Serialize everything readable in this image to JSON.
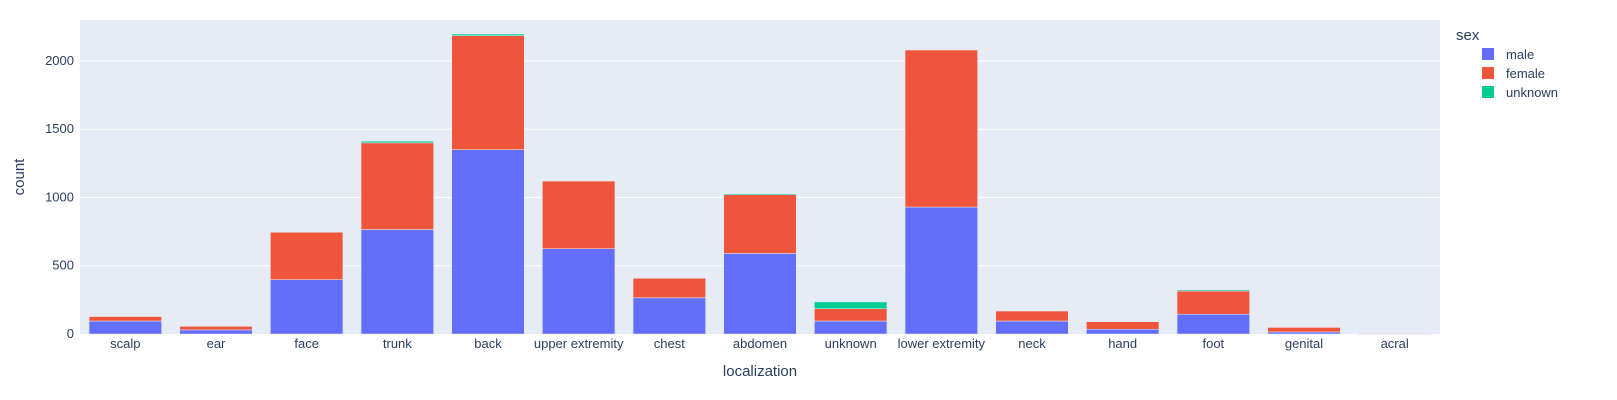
{
  "chart_data": {
    "type": "bar",
    "barmode": "stack",
    "xlabel": "localization",
    "ylabel": "count",
    "ylim": [
      0,
      2300
    ],
    "yticks": [
      0,
      500,
      1000,
      1500,
      2000
    ],
    "grid": true,
    "legend": {
      "title": "sex",
      "position": "top-right"
    },
    "categories": [
      "scalp",
      "ear",
      "face",
      "trunk",
      "back",
      "upper extremity",
      "chest",
      "abdomen",
      "unknown",
      "lower extremity",
      "neck",
      "hand",
      "foot",
      "genital",
      "acral"
    ],
    "series": [
      {
        "name": "male",
        "color": "#636efa",
        "values": [
          95,
          30,
          398,
          765,
          1350,
          625,
          265,
          590,
          95,
          930,
          95,
          35,
          145,
          15,
          3
        ]
      },
      {
        "name": "female",
        "color": "#ef553b",
        "values": [
          33,
          26,
          347,
          635,
          835,
          495,
          143,
          430,
          90,
          1150,
          73,
          55,
          170,
          33,
          4
        ]
      },
      {
        "name": "unknown",
        "color": "#00cc96",
        "values": [
          0,
          0,
          0,
          12,
          12,
          0,
          0,
          8,
          50,
          0,
          0,
          0,
          8,
          0,
          0
        ]
      }
    ]
  }
}
